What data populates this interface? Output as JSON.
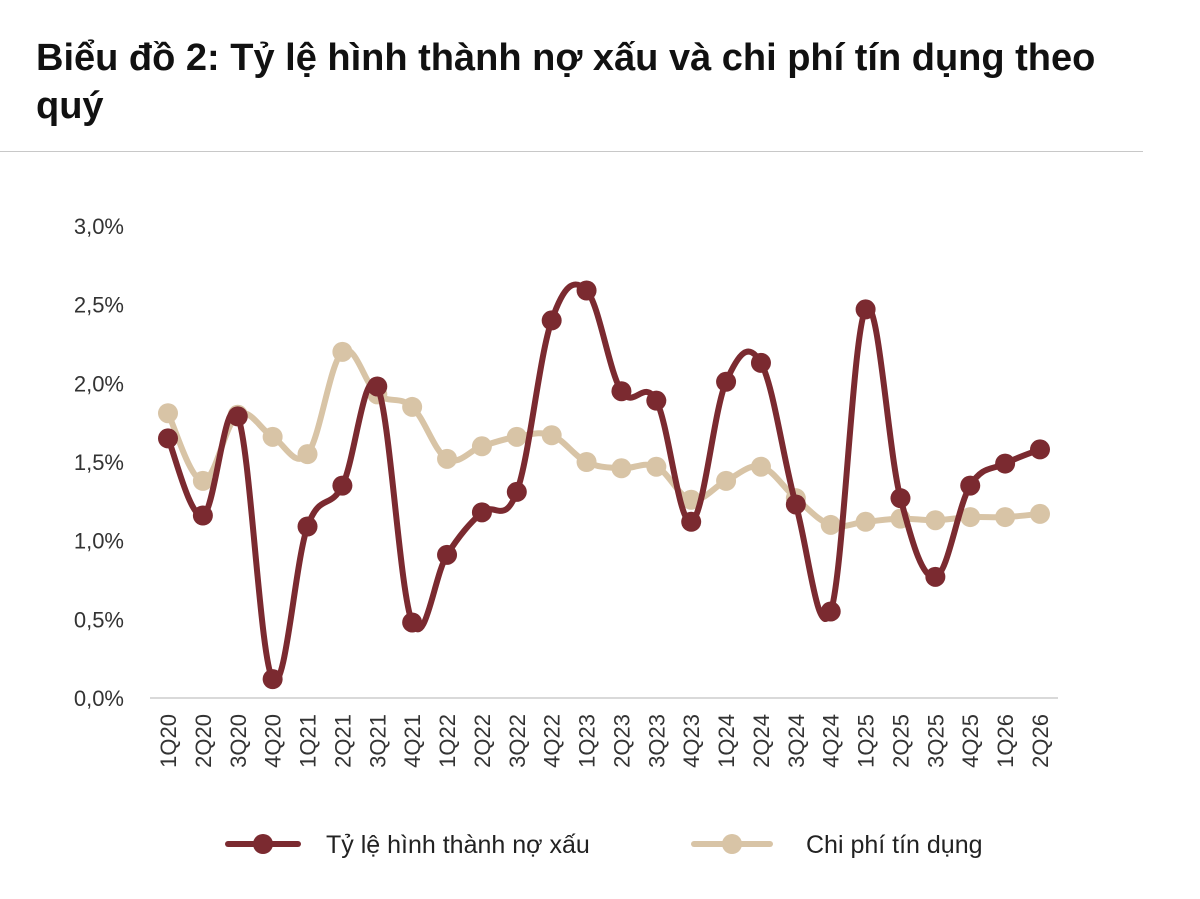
{
  "title": "Biểu đồ 2: Tỷ lệ hình thành nợ xấu và chi phí tín dụng theo quý",
  "chart_data": {
    "type": "line",
    "categories": [
      "1Q20",
      "2Q20",
      "3Q20",
      "4Q20",
      "1Q21",
      "2Q21",
      "3Q21",
      "4Q21",
      "1Q22",
      "2Q22",
      "3Q22",
      "4Q22",
      "1Q23",
      "2Q23",
      "3Q23",
      "4Q23",
      "1Q24",
      "2Q24",
      "3Q24",
      "4Q24",
      "1Q25",
      "2Q25",
      "3Q25",
      "4Q25",
      "1Q26",
      "2Q26"
    ],
    "ylim": [
      0,
      3.0
    ],
    "yticks": [
      {
        "value": 0.0,
        "label": "0,0%"
      },
      {
        "value": 0.5,
        "label": "0,5%"
      },
      {
        "value": 1.0,
        "label": "1,0%"
      },
      {
        "value": 1.5,
        "label": "1,5%"
      },
      {
        "value": 2.0,
        "label": "2,0%"
      },
      {
        "value": 2.5,
        "label": "2,5%"
      },
      {
        "value": 3.0,
        "label": "3,0%"
      }
    ],
    "grid": false,
    "legend_position": "bottom",
    "series": [
      {
        "name": "Tỷ lệ hình thành nợ xấu",
        "color": "#7b2a30",
        "values": [
          1.65,
          1.16,
          1.79,
          0.12,
          1.09,
          1.35,
          1.98,
          0.48,
          0.91,
          1.18,
          1.31,
          2.4,
          2.59,
          1.95,
          1.89,
          1.12,
          2.01,
          2.13,
          1.23,
          0.55,
          2.47,
          1.27,
          0.77,
          1.35,
          1.49,
          1.58
        ]
      },
      {
        "name": "Chi phí tín dụng",
        "color": "#d8c4a6",
        "values": [
          1.81,
          1.38,
          1.8,
          1.66,
          1.55,
          2.2,
          1.93,
          1.85,
          1.52,
          1.6,
          1.66,
          1.67,
          1.5,
          1.46,
          1.47,
          1.26,
          1.38,
          1.47,
          1.27,
          1.1,
          1.12,
          1.14,
          1.13,
          1.15,
          1.15,
          1.17
        ]
      }
    ]
  }
}
